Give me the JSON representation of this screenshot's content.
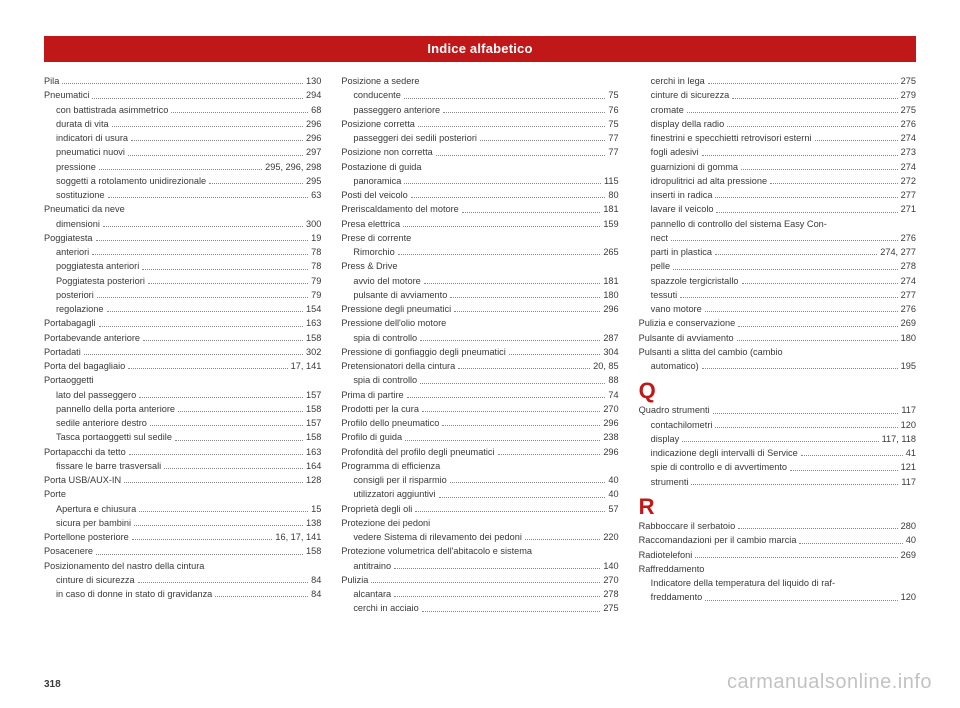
{
  "header": "Indice alfabetico",
  "page_number": "318",
  "watermark": "carmanualsonline.info",
  "colors": {
    "accent": "#c01818",
    "text": "#3a3a3a",
    "background": "#ffffff"
  },
  "columns": [
    [
      {
        "t": "e",
        "label": "Pila",
        "pg": "130"
      },
      {
        "t": "e",
        "label": "Pneumatici",
        "pg": "294"
      },
      {
        "t": "s",
        "label": "con battistrada asimmetrico",
        "pg": "68"
      },
      {
        "t": "s",
        "label": "durata di vita",
        "pg": "296"
      },
      {
        "t": "s",
        "label": "indicatori di usura",
        "pg": "296"
      },
      {
        "t": "s",
        "label": "pneumatici nuovi",
        "pg": "297"
      },
      {
        "t": "s",
        "label": "pressione",
        "pg": "295, 296, 298"
      },
      {
        "t": "s",
        "label": "soggetti a rotolamento unidirezionale",
        "pg": "295"
      },
      {
        "t": "s",
        "label": "sostituzione",
        "pg": "63"
      },
      {
        "t": "e",
        "label": "Pneumatici da neve"
      },
      {
        "t": "s",
        "label": "dimensioni",
        "pg": "300"
      },
      {
        "t": "e",
        "label": "Poggiatesta",
        "pg": "19"
      },
      {
        "t": "s",
        "label": "anteriori",
        "pg": "78"
      },
      {
        "t": "s",
        "label": "poggiatesta anteriori",
        "pg": "78"
      },
      {
        "t": "s",
        "label": "Poggiatesta posteriori",
        "pg": "79"
      },
      {
        "t": "s",
        "label": "posteriori",
        "pg": "79"
      },
      {
        "t": "s",
        "label": "regolazione",
        "pg": "154"
      },
      {
        "t": "e",
        "label": "Portabagagli",
        "pg": "163"
      },
      {
        "t": "e",
        "label": "Portabevande anteriore",
        "pg": "158"
      },
      {
        "t": "e",
        "label": "Portadati",
        "pg": "302"
      },
      {
        "t": "e",
        "label": "Porta del bagagliaio",
        "pg": "17, 141"
      },
      {
        "t": "e",
        "label": "Portaoggetti"
      },
      {
        "t": "s",
        "label": "lato del passeggero",
        "pg": "157"
      },
      {
        "t": "s",
        "label": "pannello della porta anteriore",
        "pg": "158"
      },
      {
        "t": "s",
        "label": "sedile anteriore destro",
        "pg": "157"
      },
      {
        "t": "s",
        "label": "Tasca portaoggetti sul sedile",
        "pg": "158"
      },
      {
        "t": "e",
        "label": "Portapacchi da tetto",
        "pg": "163"
      },
      {
        "t": "s",
        "label": "fissare le barre trasversali",
        "pg": "164"
      },
      {
        "t": "e",
        "label": "Porta USB/AUX-IN",
        "pg": "128"
      },
      {
        "t": "e",
        "label": "Porte"
      },
      {
        "t": "s",
        "label": "Apertura e chiusura",
        "pg": "15"
      },
      {
        "t": "s",
        "label": "sicura per bambini",
        "pg": "138"
      },
      {
        "t": "e",
        "label": "Portellone posteriore",
        "pg": "16, 17, 141"
      },
      {
        "t": "e",
        "label": "Posacenere",
        "pg": "158"
      },
      {
        "t": "e",
        "label": "Posizionamento del nastro della cintura"
      },
      {
        "t": "s",
        "label": "cinture di sicurezza",
        "pg": "84"
      },
      {
        "t": "s",
        "label": "in caso di donne in stato di gravidanza",
        "pg": "84"
      }
    ],
    [
      {
        "t": "e",
        "label": "Posizione a sedere"
      },
      {
        "t": "s",
        "label": "conducente",
        "pg": "75"
      },
      {
        "t": "s",
        "label": "passeggero anteriore",
        "pg": "76"
      },
      {
        "t": "e",
        "label": "Posizione corretta",
        "pg": "75"
      },
      {
        "t": "s",
        "label": "passeggeri dei sedili posteriori",
        "pg": "77"
      },
      {
        "t": "e",
        "label": "Posizione non corretta",
        "pg": "77"
      },
      {
        "t": "e",
        "label": "Postazione di guida"
      },
      {
        "t": "s",
        "label": "panoramica",
        "pg": "115"
      },
      {
        "t": "e",
        "label": "Posti del veicolo",
        "pg": "80"
      },
      {
        "t": "e",
        "label": "Preriscaldamento del motore",
        "pg": "181"
      },
      {
        "t": "e",
        "label": "Presa elettrica",
        "pg": "159"
      },
      {
        "t": "e",
        "label": "Prese di corrente"
      },
      {
        "t": "s",
        "label": "Rimorchio",
        "pg": "265"
      },
      {
        "t": "e",
        "label": "Press & Drive"
      },
      {
        "t": "s",
        "label": "avvio del motore",
        "pg": "181"
      },
      {
        "t": "s",
        "label": "pulsante di avviamento",
        "pg": "180"
      },
      {
        "t": "e",
        "label": "Pressione degli pneumatici",
        "pg": "296"
      },
      {
        "t": "e",
        "label": "Pressione dell'olio motore"
      },
      {
        "t": "s",
        "label": "spia di controllo",
        "pg": "287"
      },
      {
        "t": "e",
        "label": "Pressione di gonfiaggio degli pneumatici",
        "pg": "304"
      },
      {
        "t": "e",
        "label": "Pretensionatori della cintura",
        "pg": "20, 85"
      },
      {
        "t": "s",
        "label": "spia di controllo",
        "pg": "88"
      },
      {
        "t": "e",
        "label": "Prima di partire",
        "pg": "74"
      },
      {
        "t": "e",
        "label": "Prodotti per la cura",
        "pg": "270"
      },
      {
        "t": "e",
        "label": "Profilo dello pneumatico",
        "pg": "296"
      },
      {
        "t": "e",
        "label": "Profilo di guida",
        "pg": "238"
      },
      {
        "t": "e",
        "label": "Profondità del profilo degli pneumatici",
        "pg": "296"
      },
      {
        "t": "e",
        "label": "Programma di efficienza"
      },
      {
        "t": "s",
        "label": "consigli per il risparmio",
        "pg": "40"
      },
      {
        "t": "s",
        "label": "utilizzatori aggiuntivi",
        "pg": "40"
      },
      {
        "t": "e",
        "label": "Proprietà degli oli",
        "pg": "57"
      },
      {
        "t": "e",
        "label": "Protezione dei pedoni"
      },
      {
        "t": "s",
        "label": "vedere Sistema di rilevamento dei pedoni",
        "pg": "220"
      },
      {
        "t": "e",
        "label": "Protezione volumetrica dell'abitacolo e sistema"
      },
      {
        "t": "s",
        "label": "antitraino",
        "pg": "140"
      },
      {
        "t": "e",
        "label": "Pulizia",
        "pg": "270"
      },
      {
        "t": "s",
        "label": "alcantara",
        "pg": "278"
      },
      {
        "t": "s",
        "label": "cerchi in acciaio",
        "pg": "275"
      }
    ],
    [
      {
        "t": "s",
        "label": "cerchi in lega",
        "pg": "275"
      },
      {
        "t": "s",
        "label": "cinture di sicurezza",
        "pg": "279"
      },
      {
        "t": "s",
        "label": "cromate",
        "pg": "275"
      },
      {
        "t": "s",
        "label": "display della radio",
        "pg": "276"
      },
      {
        "t": "s",
        "label": "finestrini e specchietti retrovisori esterni",
        "pg": "274"
      },
      {
        "t": "s",
        "label": "fogli adesivi",
        "pg": "273"
      },
      {
        "t": "s",
        "label": "guarnizioni di gomma",
        "pg": "274"
      },
      {
        "t": "s",
        "label": "idropulitrici ad alta pressione",
        "pg": "272"
      },
      {
        "t": "s",
        "label": "inserti in radica",
        "pg": "277"
      },
      {
        "t": "s",
        "label": "lavare il veicolo",
        "pg": "271"
      },
      {
        "t": "s",
        "label": "pannello di controllo del sistema Easy Con-"
      },
      {
        "t": "s",
        "label": "   nect",
        "pg": "276"
      },
      {
        "t": "s",
        "label": "parti in plastica",
        "pg": "274, 277"
      },
      {
        "t": "s",
        "label": "pelle",
        "pg": "278"
      },
      {
        "t": "s",
        "label": "spazzole tergicristallo",
        "pg": "274"
      },
      {
        "t": "s",
        "label": "tessuti",
        "pg": "277"
      },
      {
        "t": "s",
        "label": "vano motore",
        "pg": "276"
      },
      {
        "t": "e",
        "label": "Pulizia e conservazione",
        "pg": "269"
      },
      {
        "t": "e",
        "label": "Pulsante di avviamento",
        "pg": "180"
      },
      {
        "t": "e",
        "label": "Pulsanti a slitta del cambio (cambio"
      },
      {
        "t": "s",
        "label": "automatico)",
        "pg": "195"
      },
      {
        "t": "letter",
        "text": "Q"
      },
      {
        "t": "e",
        "label": "Quadro strumenti",
        "pg": "117"
      },
      {
        "t": "s",
        "label": "contachilometri",
        "pg": "120"
      },
      {
        "t": "s",
        "label": "display",
        "pg": "117, 118"
      },
      {
        "t": "s",
        "label": "indicazione degli intervalli di Service",
        "pg": "41"
      },
      {
        "t": "s",
        "label": "spie di controllo e di avvertimento",
        "pg": "121"
      },
      {
        "t": "s",
        "label": "strumenti",
        "pg": "117"
      },
      {
        "t": "letter",
        "text": "R"
      },
      {
        "t": "e",
        "label": "Rabboccare il serbatoio",
        "pg": "280"
      },
      {
        "t": "e",
        "label": "Raccomandazioni per il cambio marcia",
        "pg": "40"
      },
      {
        "t": "e",
        "label": "Radiotelefoni",
        "pg": "269"
      },
      {
        "t": "e",
        "label": "Raffreddamento"
      },
      {
        "t": "s",
        "label": "Indicatore della temperatura del liquido di raf-"
      },
      {
        "t": "s",
        "label": "   freddamento",
        "pg": "120"
      }
    ]
  ]
}
